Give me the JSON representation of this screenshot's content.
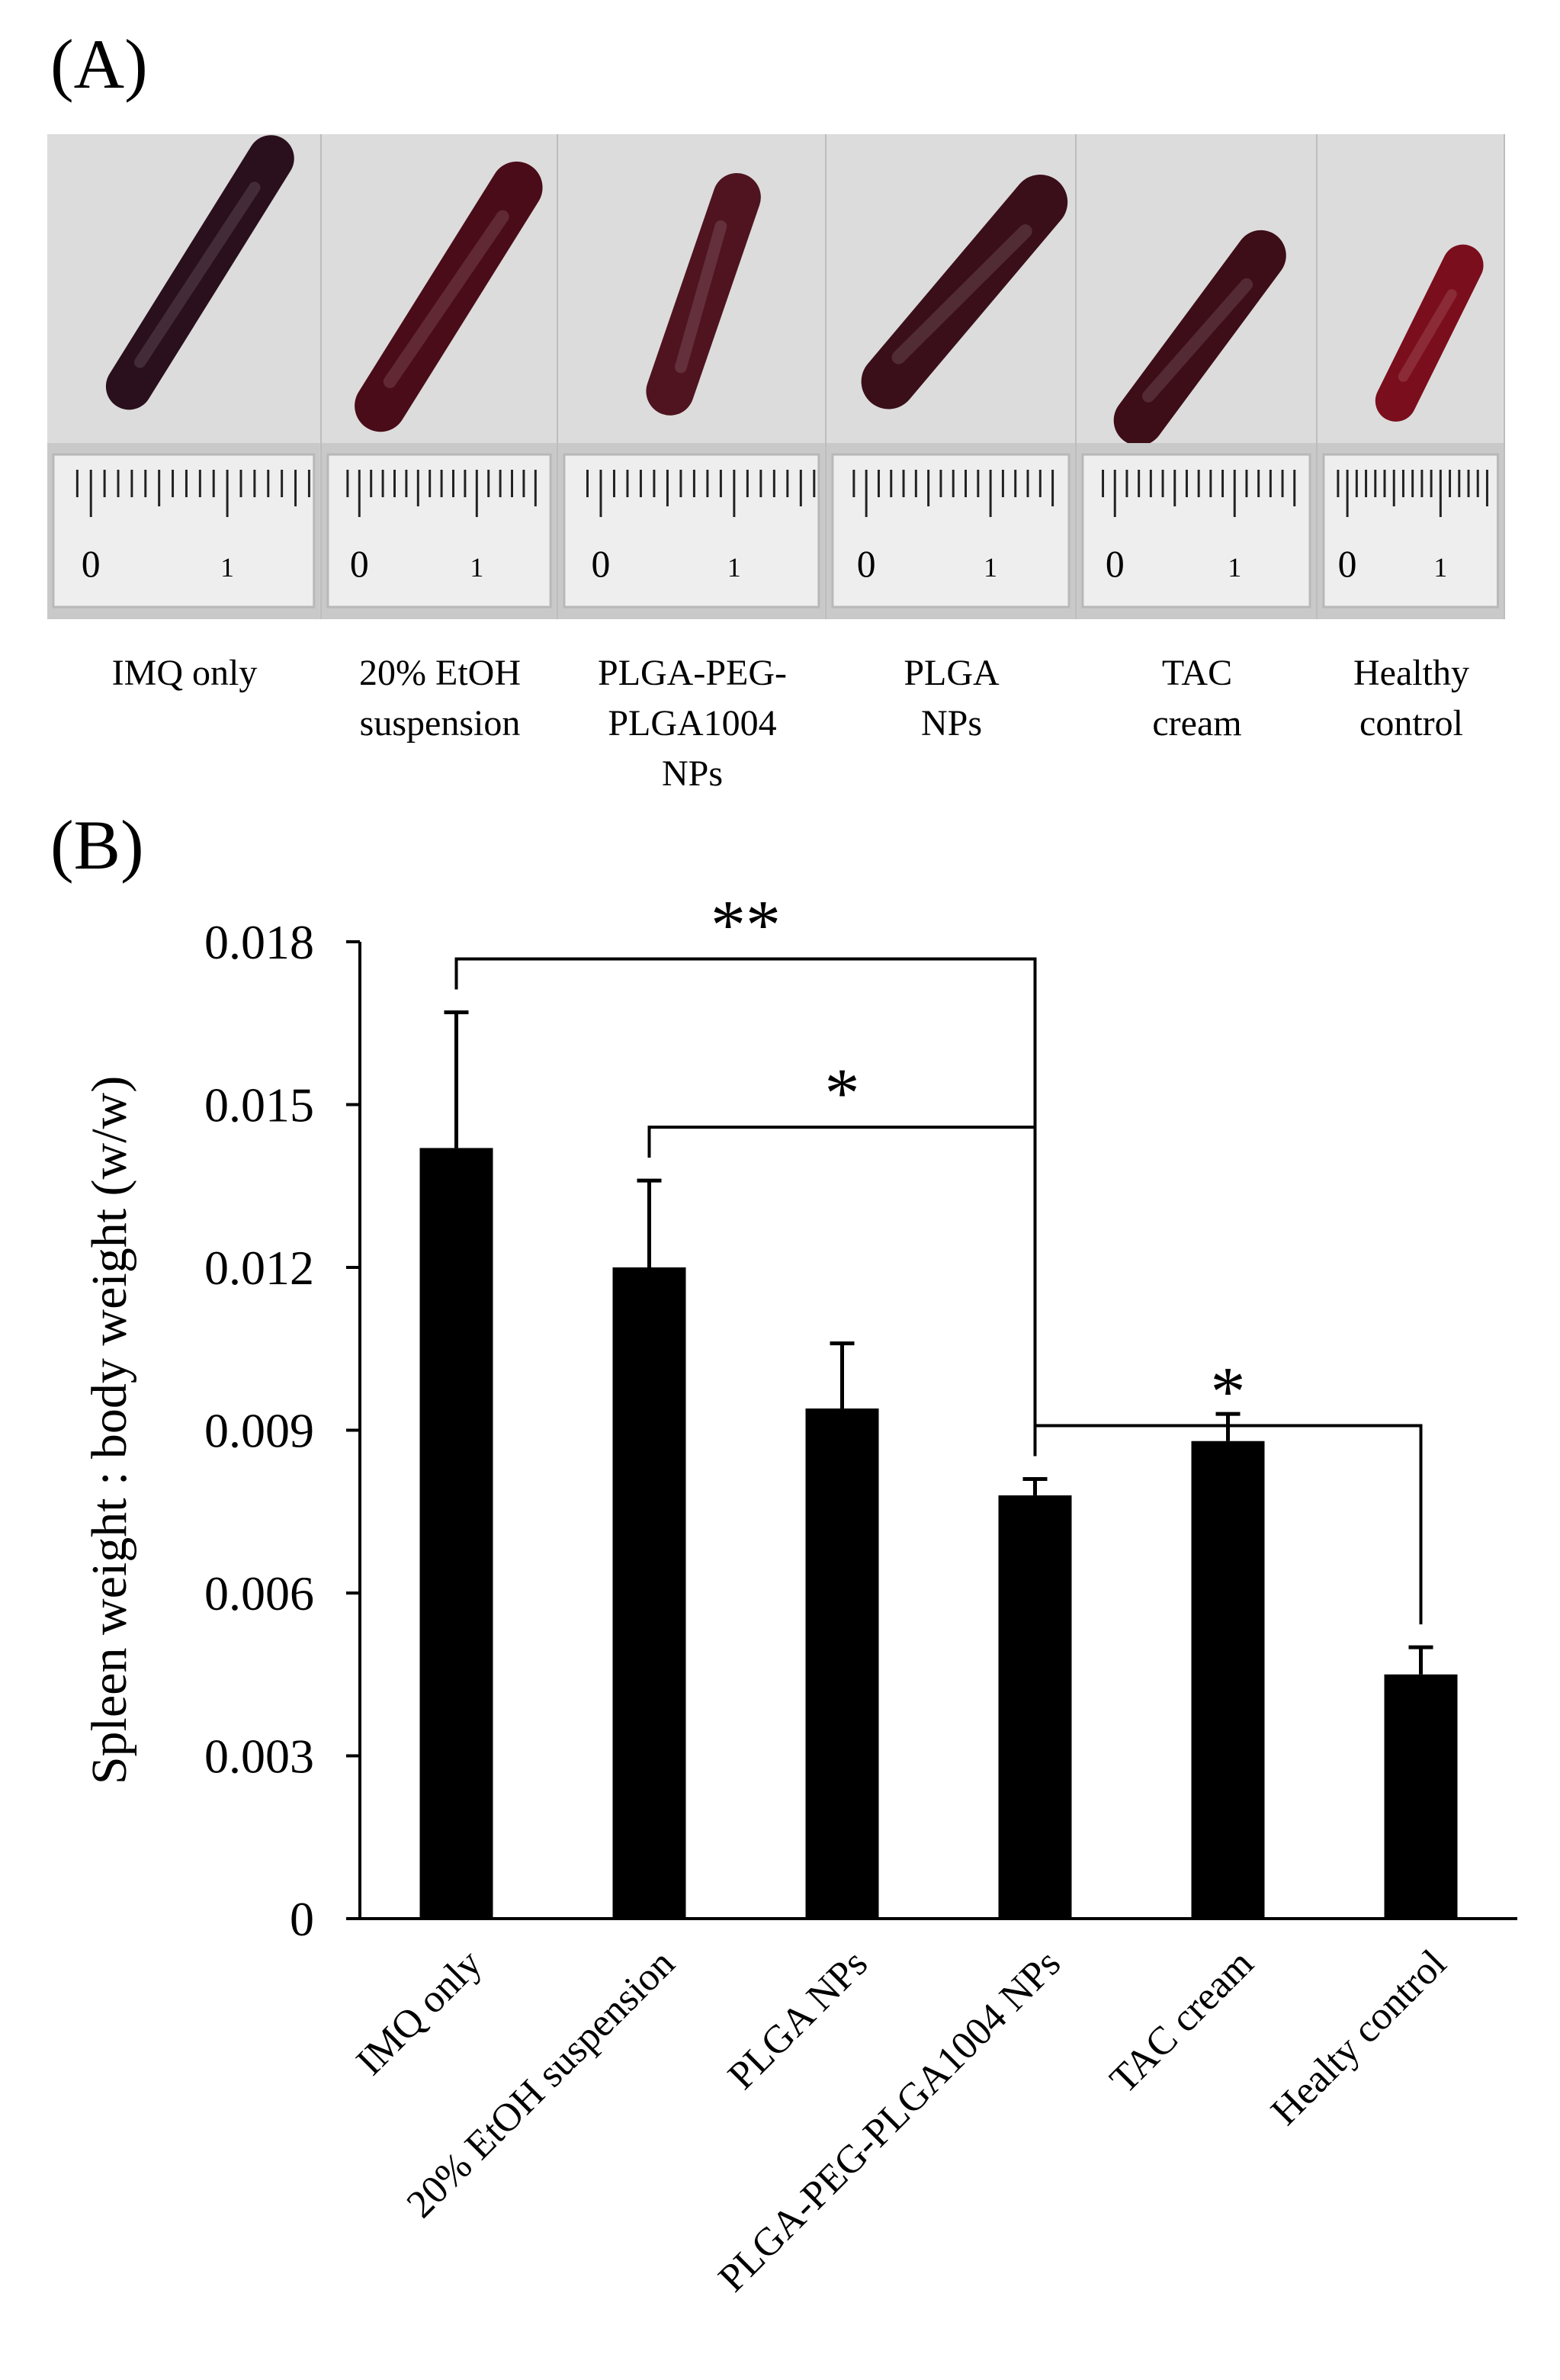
{
  "panel_a": {
    "label": "(A)",
    "ruler_marks": [
      "0",
      "1"
    ],
    "photos": [
      {
        "label_lines": [
          "IMQ only"
        ],
        "tissue_color": "#2a0f1c"
      },
      {
        "label_lines": [
          "20% EtOH",
          "suspension"
        ],
        "tissue_color": "#4a0c18"
      },
      {
        "label_lines": [
          "PLGA-PEG-",
          "PLGA1004",
          "NPs"
        ],
        "tissue_color": "#4f1420"
      },
      {
        "label_lines": [
          "PLGA",
          "NPs"
        ],
        "tissue_color": "#3a0f1a"
      },
      {
        "label_lines": [
          "TAC",
          "cream"
        ],
        "tissue_color": "#3d0d18"
      },
      {
        "label_lines": [
          "Healthy",
          "control"
        ],
        "tissue_color": "#7a0e1c"
      }
    ]
  },
  "chart_data": {
    "panel_label": "(B)",
    "type": "bar",
    "categories": [
      "IMQ only",
      "20% EtOH suspension",
      "PLGA NPs",
      "PLGA-PEG-PLGA1004 NPs",
      "TAC cream",
      "Healty control"
    ],
    "values": [
      0.0142,
      0.012,
      0.0094,
      0.0078,
      0.0088,
      0.0045
    ],
    "error_upper": [
      0.0025,
      0.0016,
      0.0012,
      0.0003,
      0.0005,
      0.0005
    ],
    "ylabel": "Spleen weight : body weight (w/w)",
    "ylim": [
      0,
      0.018
    ],
    "yticks": [
      0,
      0.003,
      0.006,
      0.009,
      0.012,
      0.015,
      0.018
    ],
    "ytick_labels": [
      "0",
      "0.003",
      "0.006",
      "0.009",
      "0.012",
      "0.015",
      "0.018"
    ],
    "bar_color": "#000000",
    "significance": [
      {
        "from": 0,
        "to": 3,
        "label": "**"
      },
      {
        "from": 1,
        "to": 3,
        "label": "*"
      },
      {
        "from": 3,
        "to": 5,
        "label": "*"
      }
    ]
  }
}
